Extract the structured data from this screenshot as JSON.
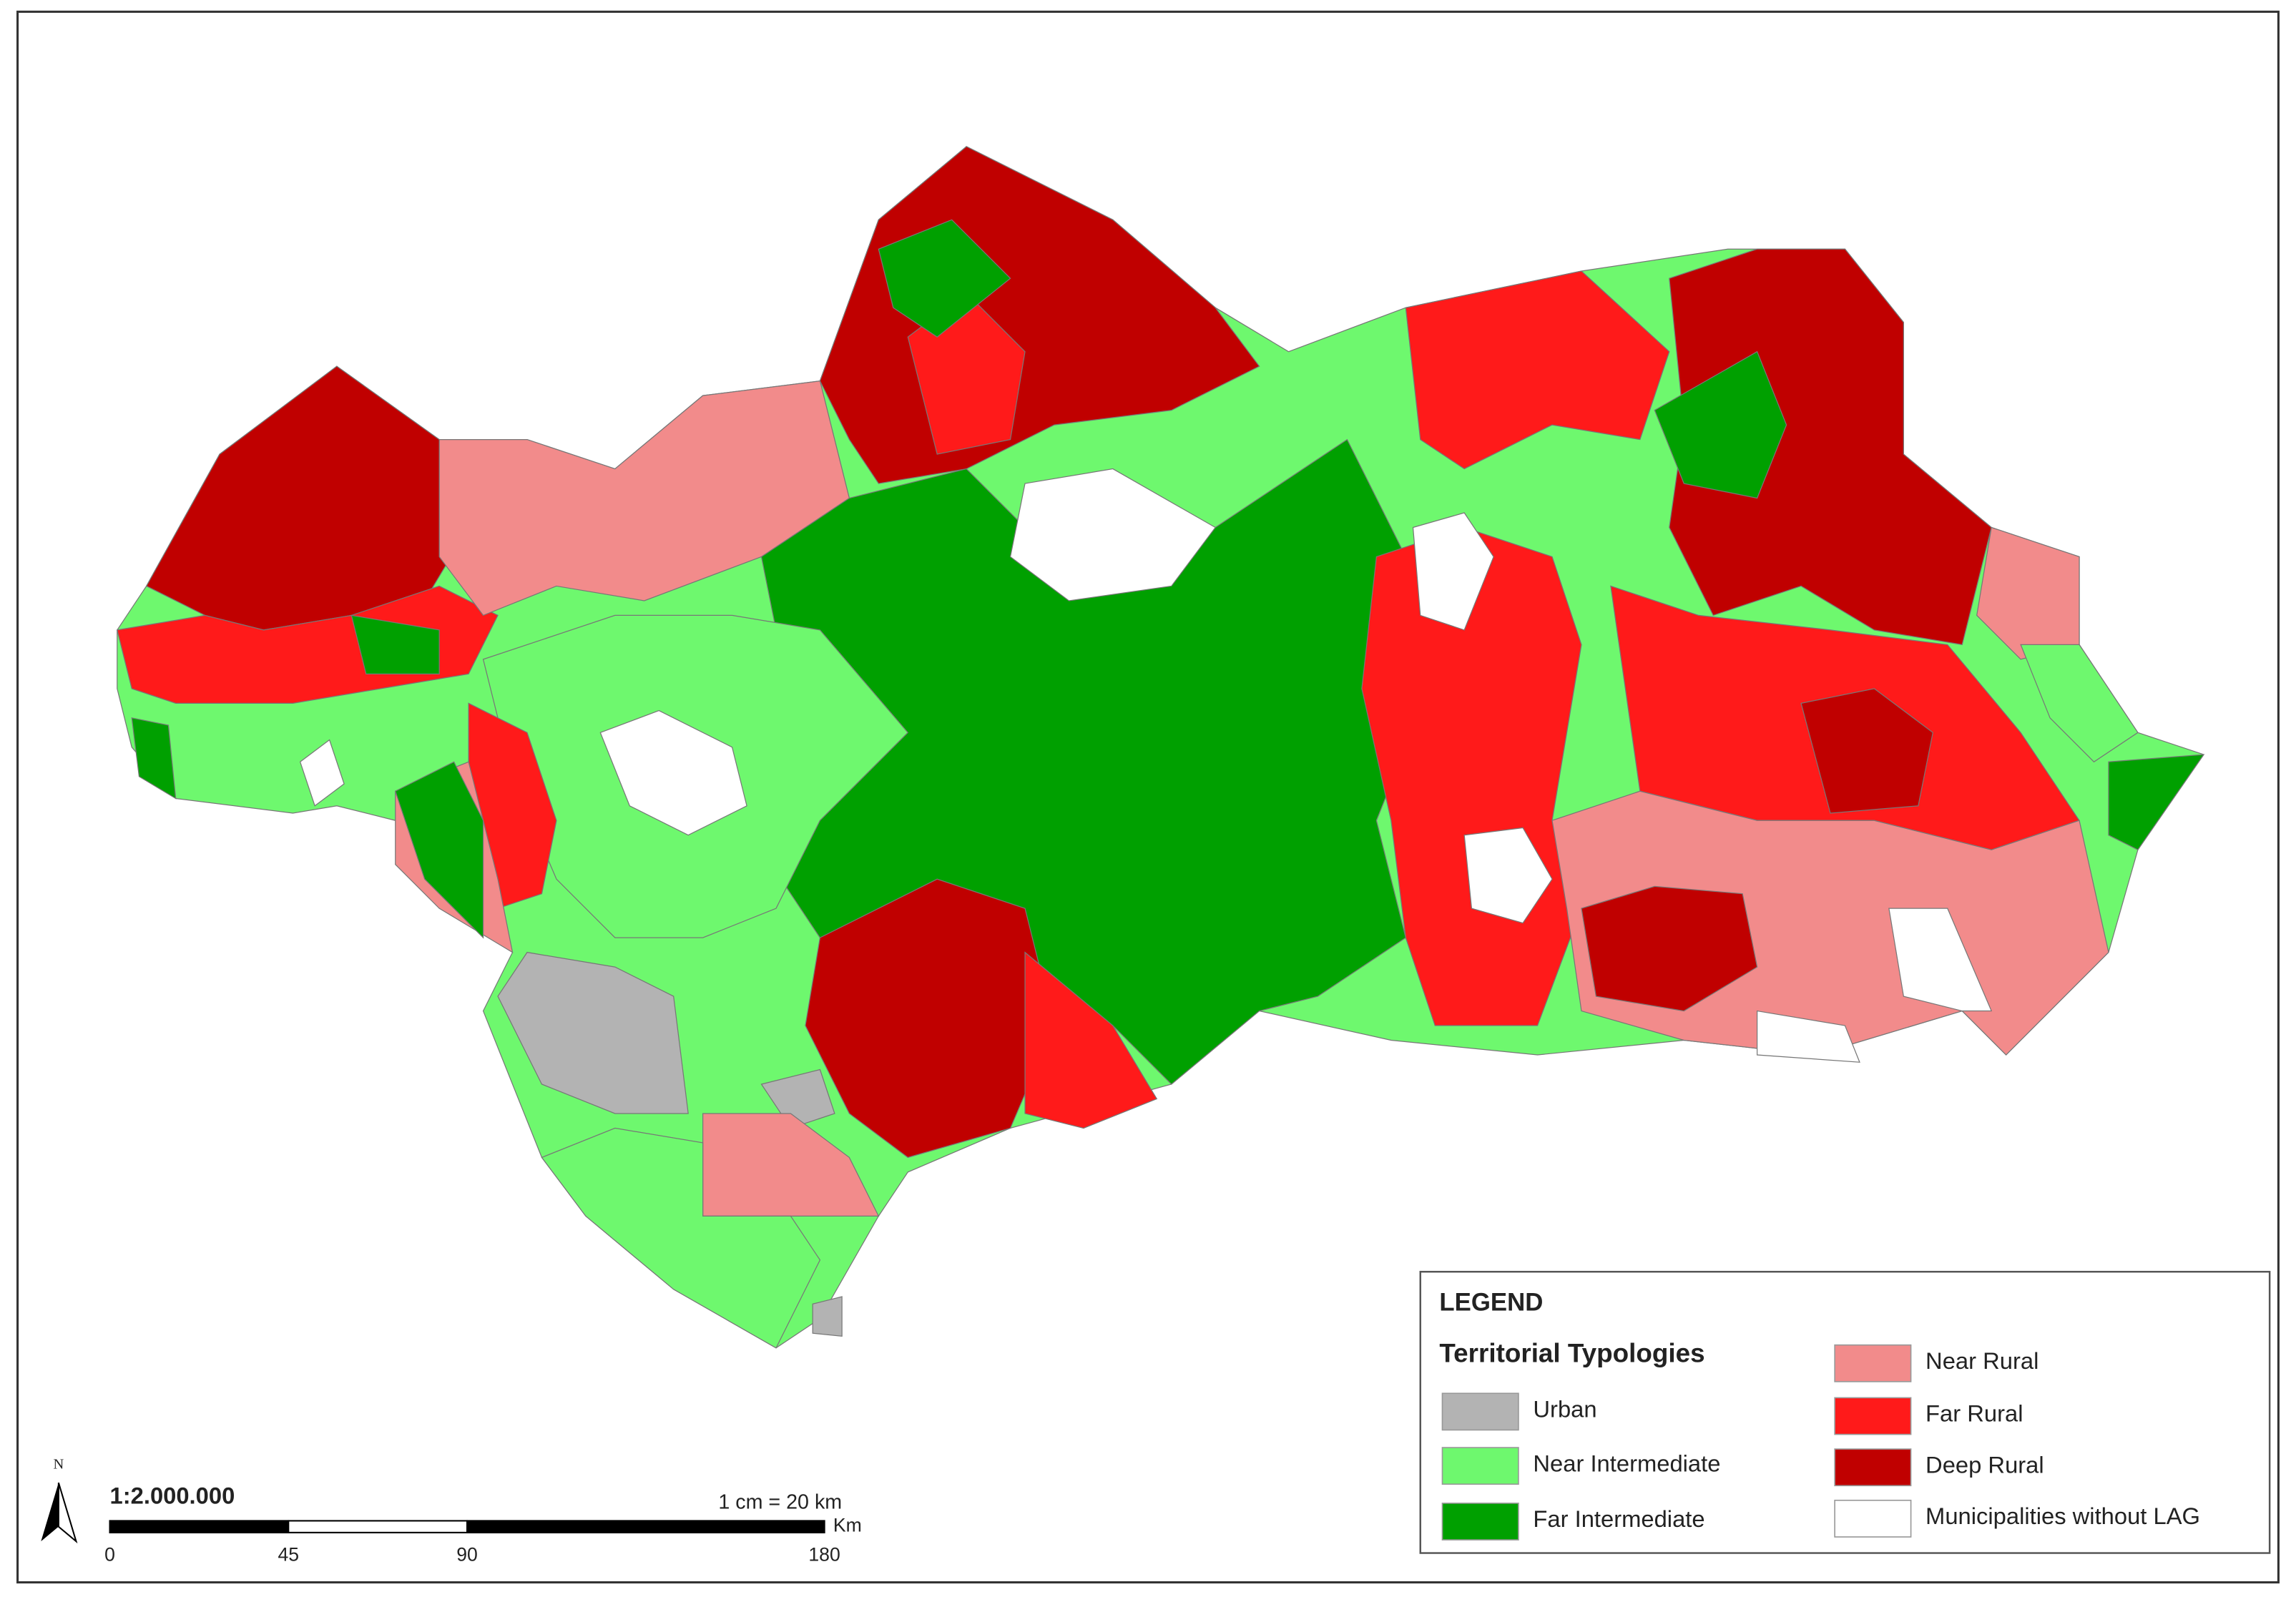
{
  "legend": {
    "title": "LEGEND",
    "subtitle": "Territorial Typologies",
    "items": [
      {
        "label": "Urban",
        "color": "#b3b3b3"
      },
      {
        "label": "Near Intermediate",
        "color": "#6ef86e"
      },
      {
        "label": "Far Intermediate",
        "color": "#00a000"
      },
      {
        "label": "Near Rural",
        "color": "#f28b8b"
      },
      {
        "label": "Far Rural",
        "color": "#ff1a1a"
      },
      {
        "label": "Deep Rural",
        "color": "#c00000"
      },
      {
        "label": "Municipalities without LAG",
        "color": "#ffffff"
      }
    ]
  },
  "scale_bar": {
    "ratio": "1:2.000.000",
    "equivalence": "1 cm = 20 km",
    "unit": "Km",
    "ticks": [
      0,
      45,
      90,
      180
    ]
  },
  "north": "N"
}
